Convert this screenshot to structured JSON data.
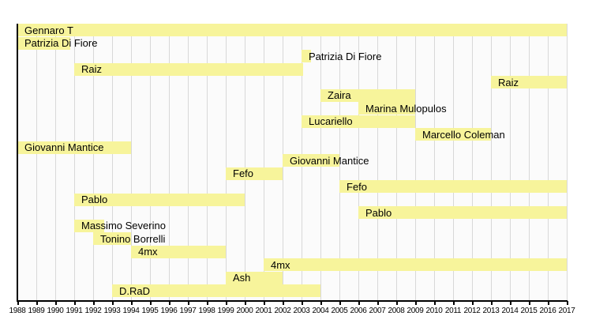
{
  "chart_data": {
    "type": "bar",
    "subtype": "horizontal-timeline",
    "title": "",
    "xlabel": "",
    "ylabel": "",
    "legend": "none",
    "grid": "vertical",
    "x_axis": {
      "min": 1988,
      "max": 2017,
      "tick_labels": [
        "1988",
        "1989",
        "1990",
        "1991",
        "1992",
        "1993",
        "1994",
        "1995",
        "1996",
        "1997",
        "1998",
        "1999",
        "2000",
        "2001",
        "2002",
        "2003",
        "2004",
        "2005",
        "2006",
        "2007",
        "2008",
        "2009",
        "2010",
        "2011",
        "2012",
        "2013",
        "2014",
        "2015",
        "2016",
        "2017"
      ]
    },
    "rows": [
      {
        "label": "Gennaro T",
        "start": 1988,
        "end": 2017
      },
      {
        "label": "Patrizia Di Fiore",
        "start": 1988,
        "end": 1990.8
      },
      {
        "label": "Patrizia Di Fiore",
        "start": 2003,
        "end": 2003.5
      },
      {
        "label": "Raiz",
        "start": 1991,
        "end": 2003.1
      },
      {
        "label": "Raiz",
        "start": 2013,
        "end": 2017
      },
      {
        "label": "Zaira",
        "start": 2004,
        "end": 2009
      },
      {
        "label": "Marina Mulopulos",
        "start": 2006,
        "end": 2009
      },
      {
        "label": "Lucariello",
        "start": 2003,
        "end": 2009
      },
      {
        "label": "Marcello Coleman",
        "start": 2009,
        "end": 2013
      },
      {
        "label": "Giovanni Mantice",
        "start": 1988,
        "end": 1994
      },
      {
        "label": "Giovanni Mantice",
        "start": 2002,
        "end": 2005
      },
      {
        "label": "Fefo",
        "start": 1999,
        "end": 2002
      },
      {
        "label": "Fefo",
        "start": 2005,
        "end": 2017
      },
      {
        "label": "Pablo",
        "start": 1991,
        "end": 2000
      },
      {
        "label": "Pablo",
        "start": 2006,
        "end": 2017
      },
      {
        "label": "Massimo Severino",
        "start": 1991,
        "end": 1992.6
      },
      {
        "label": "Tonino Borrelli",
        "start": 1992,
        "end": 1994
      },
      {
        "label": "4mx",
        "start": 1994,
        "end": 1999
      },
      {
        "label": "4mx",
        "start": 2001,
        "end": 2017
      },
      {
        "label": "Ash",
        "start": 1999,
        "end": 2002
      },
      {
        "label": "D.RaD",
        "start": 1993,
        "end": 2004
      }
    ],
    "colors": {
      "bar": "#f7f49b",
      "grid": "#d8d8d8",
      "axis": "#000000",
      "text": "#000000",
      "plot_bg": "#fbfbfb"
    }
  }
}
